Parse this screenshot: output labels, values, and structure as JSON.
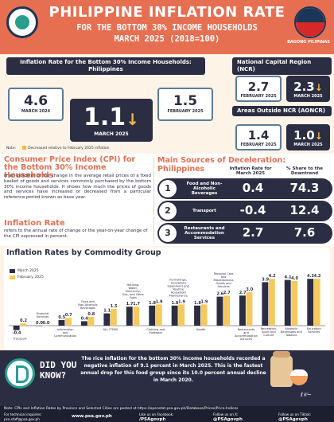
{
  "header": {
    "title": "PHILIPPINE INFLATION RATE",
    "subtitle_1": "FOR THE BOTTOM 30% INCOME HOUSEHOLDS",
    "subtitle_2": "MARCH 2025 (2018=100)",
    "badge_label": "BAGONG PILIPINAS"
  },
  "philippines": {
    "title": "Inflation Rate for the Bottom 30% Income Households: Philippines",
    "prev_year": {
      "value": "4.6",
      "label": "MARCH 2024"
    },
    "current": {
      "value": "1.1",
      "label": "MARCH 2025",
      "arrow": "↓"
    },
    "prev_month": {
      "value": "1.5",
      "label": "FEBRUARY 2025"
    }
  },
  "ncr": {
    "title": "National Capital Region (NCR)",
    "prev_month": {
      "value": "2.7",
      "label": "FEBRUARY 2025"
    },
    "current": {
      "value": "2.3",
      "label": "MARCH 2025",
      "arrow": "↓"
    }
  },
  "aoncr": {
    "title": "Areas Outside NCR (AONCR)",
    "prev_month": {
      "value": "1.4",
      "label": "FEBRUARY 2025"
    },
    "current": {
      "value": "1.0",
      "label": "MARCH 2025",
      "arrow": "↓"
    }
  },
  "note": {
    "label": "Note:",
    "text": "Decreased relative to February 2025 inflation"
  },
  "cpi": {
    "title": "Consumer Price Index (CPI) for the Bottom 30% Income Households",
    "text": "is an indicator of the change in the average retail prices of a fixed basket of goods and services commonly purchased by the bottom 30% income households. It shows how much the prices of goods and services have increased or decreased from a particular reference period known as base year."
  },
  "inflation_def": {
    "title": "Inflation Rate",
    "text": "refers to the annual rate of change or the year-on-year change of the CPI expressed in percent."
  },
  "deceleration": {
    "title": "Main Sources of Deceleration: Philippines",
    "col_inflation": "Inflation Rate for March 2025",
    "col_share": "% Share to the Downtrend",
    "rows": [
      {
        "rank": "1",
        "name": "Food and Non-Alcoholic Beverages",
        "inflation": "0.4",
        "share": "74.3"
      },
      {
        "rank": "2",
        "name": "Transport",
        "inflation": "-0.4",
        "share": "12.4"
      },
      {
        "rank": "3",
        "name": "Restaurants and Accommodation Services",
        "inflation": "2.7",
        "share": "7.6"
      }
    ]
  },
  "chart_data": {
    "type": "bar",
    "title": "Inflation Rates by Commodity Group",
    "categories": [
      "Transport",
      "Financial Services",
      "Information and Communication",
      "Food and Non-Alcoholic Beverages",
      "ALL ITEMS",
      "Housing, Water, Electricity, Gas, and Other Fuels",
      "Clothing and Footwear",
      "Furnishings, Household Equipment and Routine Household Maintenance",
      "Health",
      "Personal Care and Miscellaneous Goods and Services",
      "Restaurants and Accommodation Services",
      "Recreation, Sport and Culture",
      "Alcoholic Beverages and Tobacco",
      "Education Services"
    ],
    "series": [
      {
        "name": "March 2025",
        "color": "#2b2d42",
        "values": [
          -0.4,
          0.0,
          0.5,
          0.4,
          1.1,
          1.7,
          1.8,
          1.8,
          1.8,
          2.6,
          2.7,
          3.9,
          4.1,
          4.2
        ]
      },
      {
        "name": "February 2025",
        "color": "#f4c95d",
        "values": [
          0.2,
          0.0,
          0.7,
          0.8,
          1.5,
          1.7,
          1.9,
          1.9,
          1.9,
          2.7,
          3.0,
          4.2,
          4.0,
          4.2
        ]
      }
    ]
  },
  "did_you_know": {
    "label_1": "DID YOU",
    "label_2": "KNOW?",
    "text": "The rice inflation for the bottom 30% income households recorded a negative inflation of 9.1 percent in March 2025. This is the fastest annual drop for this food group since its 10.0 percent annual decline in March 2020."
  },
  "footer": {
    "note": "Note: CPIs and Inflation Rates by Province and Selected Cities are posted at https://openstat.psa.gov.ph/Database/Prices/Price-Indices",
    "inquiries_label": "For technical inquiries:",
    "inquiries_email": "pso.staff@psa.gov.ph",
    "website": "www.psa.gov.ph",
    "facebook_label": "Like us on Facebook:",
    "facebook": "/PSAgovph",
    "x_label": "Follow us on X:",
    "x": "@PSAgovph",
    "tiktok_label": "Follow us on Tiktok:",
    "tiktok": "@PSAgovph"
  }
}
